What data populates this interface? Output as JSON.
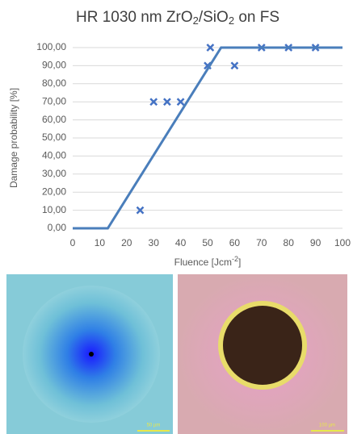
{
  "chart_data": {
    "type": "scatter",
    "title": [
      "HR 1030 nm ZrO",
      "2",
      "/SiO",
      "2",
      " on FS"
    ],
    "x_label": [
      "Fluence [Jcm",
      "-2",
      "]"
    ],
    "y_label": "Damage probability [%]",
    "xlim": [
      0,
      100
    ],
    "xticks": [
      0,
      10,
      20,
      30,
      40,
      50,
      60,
      70,
      80,
      90,
      100
    ],
    "ylim": [
      0,
      100
    ],
    "yticks": [
      {
        "value": 0,
        "label": "0,00"
      },
      {
        "value": 10,
        "label": "10,00"
      },
      {
        "value": 20,
        "label": "20,00"
      },
      {
        "value": 30,
        "label": "30,00"
      },
      {
        "value": 40,
        "label": "40,00"
      },
      {
        "value": 50,
        "label": "50,00"
      },
      {
        "value": 60,
        "label": "60,00"
      },
      {
        "value": 70,
        "label": "70,00"
      },
      {
        "value": 80,
        "label": "80,00"
      },
      {
        "value": 90,
        "label": "90,00"
      },
      {
        "value": 100,
        "label": "100,00"
      }
    ],
    "grid": true,
    "series": [
      {
        "type": "scatter",
        "color": "#4472c4",
        "x": [
          25,
          30,
          35,
          40,
          50,
          51,
          60,
          70,
          80,
          90
        ],
        "values": [
          10,
          70,
          70,
          70,
          90,
          100,
          90,
          100,
          100,
          100
        ]
      },
      {
        "type": "line",
        "color": "#4a7ebb",
        "x": [
          0,
          13,
          55,
          100
        ],
        "values": [
          0,
          0,
          100,
          100
        ]
      }
    ]
  },
  "images": [
    {
      "scale_label": "50 µm"
    },
    {
      "scale_label": "100 µm"
    }
  ]
}
